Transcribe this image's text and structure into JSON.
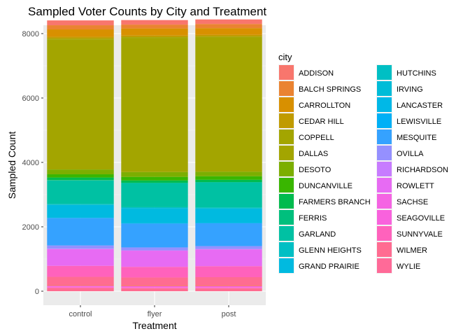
{
  "chart_data": {
    "type": "bar",
    "stacked": true,
    "title": "Sampled Voter Counts by City and Treatment",
    "xlabel": "Treatment",
    "ylabel": "Sampled Count",
    "categories": [
      "control",
      "flyer",
      "post"
    ],
    "ylim": [
      0,
      8200
    ],
    "yticks": [
      0,
      2000,
      4000,
      6000,
      8000
    ],
    "grid": true,
    "legend_title": "city",
    "legend_position": "right",
    "series": [
      {
        "name": "ADDISON",
        "color": "#F8766D",
        "values": [
          150,
          140,
          140
        ]
      },
      {
        "name": "BALCH SPRINGS",
        "color": "#EA8331",
        "values": [
          130,
          120,
          130
        ]
      },
      {
        "name": "CARROLLTON",
        "color": "#D89000",
        "values": [
          230,
          220,
          210
        ]
      },
      {
        "name": "CEDAR HILL",
        "color": "#C09B00",
        "values": [
          50,
          50,
          50
        ]
      },
      {
        "name": "COPPELL",
        "color": "#A3A500",
        "values": [
          30,
          30,
          30
        ]
      },
      {
        "name": "DALLAS",
        "color": "#A3A500",
        "values": [
          4040,
          4160,
          4170
        ]
      },
      {
        "name": "DESOTO",
        "color": "#7CAE00",
        "values": [
          150,
          150,
          140
        ]
      },
      {
        "name": "DUNCANVILLE",
        "color": "#39B600",
        "values": [
          100,
          110,
          110
        ]
      },
      {
        "name": "FARMERS BRANCH",
        "color": "#00BB4E",
        "values": [
          80,
          70,
          70
        ]
      },
      {
        "name": "FERRIS",
        "color": "#00BF7D",
        "values": [
          10,
          10,
          10
        ]
      },
      {
        "name": "GARLAND",
        "color": "#00C1A3",
        "values": [
          730,
          750,
          780
        ]
      },
      {
        "name": "GLENN HEIGHTS",
        "color": "#00BFC4",
        "values": [
          30,
          30,
          30
        ]
      },
      {
        "name": "GRAND PRAIRIE",
        "color": "#00BAE0",
        "values": [
          400,
          470,
          450
        ]
      },
      {
        "name": "HUTCHINS",
        "color": "#00B0F6",
        "values": [
          10,
          10,
          10
        ]
      },
      {
        "name": "IRVING",
        "color": "#35A2FF",
        "values": [
          850,
          740,
          710
        ]
      },
      {
        "name": "LANCASTER",
        "color": "#9590FF",
        "values": [
          100,
          90,
          90
        ]
      },
      {
        "name": "LEWISVILLE",
        "color": "#C77CFF",
        "values": [
          10,
          10,
          10
        ]
      },
      {
        "name": "MESQUITE",
        "color": "#E76BF3",
        "values": [
          520,
          500,
          520
        ]
      },
      {
        "name": "OVILLA",
        "color": "#FA62DB",
        "values": [
          5,
          5,
          5
        ]
      },
      {
        "name": "RICHARDSON",
        "color": "#FF62BC",
        "values": [
          340,
          330,
          340
        ]
      },
      {
        "name": "ROWLETT",
        "color": "#FF6C91",
        "values": [
          250,
          240,
          250
        ]
      },
      {
        "name": "SACHSE",
        "color": "#F8766D",
        "values": [
          30,
          30,
          30
        ]
      },
      {
        "name": "SEAGOVILLE",
        "color": "#F65CE4",
        "values": [
          30,
          30,
          30
        ]
      },
      {
        "name": "SUNNYVALE",
        "color": "#FD61D1",
        "values": [
          20,
          20,
          20
        ]
      },
      {
        "name": "WILMER",
        "color": "#FF61C3",
        "values": [
          15,
          15,
          15
        ]
      },
      {
        "name": "WYLIE",
        "color": "#FF6C90",
        "values": [
          100,
          90,
          90
        ]
      }
    ],
    "legend_colors": [
      "#F8766D",
      "#EA8331",
      "#D89000",
      "#C09B00",
      "#A3A500",
      "#A3A500",
      "#7CAE00",
      "#39B600",
      "#00BB4E",
      "#00BF7D",
      "#00C1A3",
      "#00BFC4",
      "#00BAE0",
      "#00BFC4",
      "#00BCD8",
      "#00B8E7",
      "#00B0F6",
      "#35A2FF",
      "#9590FF",
      "#C77CFF",
      "#E76BF3",
      "#F564E3",
      "#F962DD",
      "#FF62BC",
      "#FF6C91",
      "#FF6A98"
    ]
  }
}
